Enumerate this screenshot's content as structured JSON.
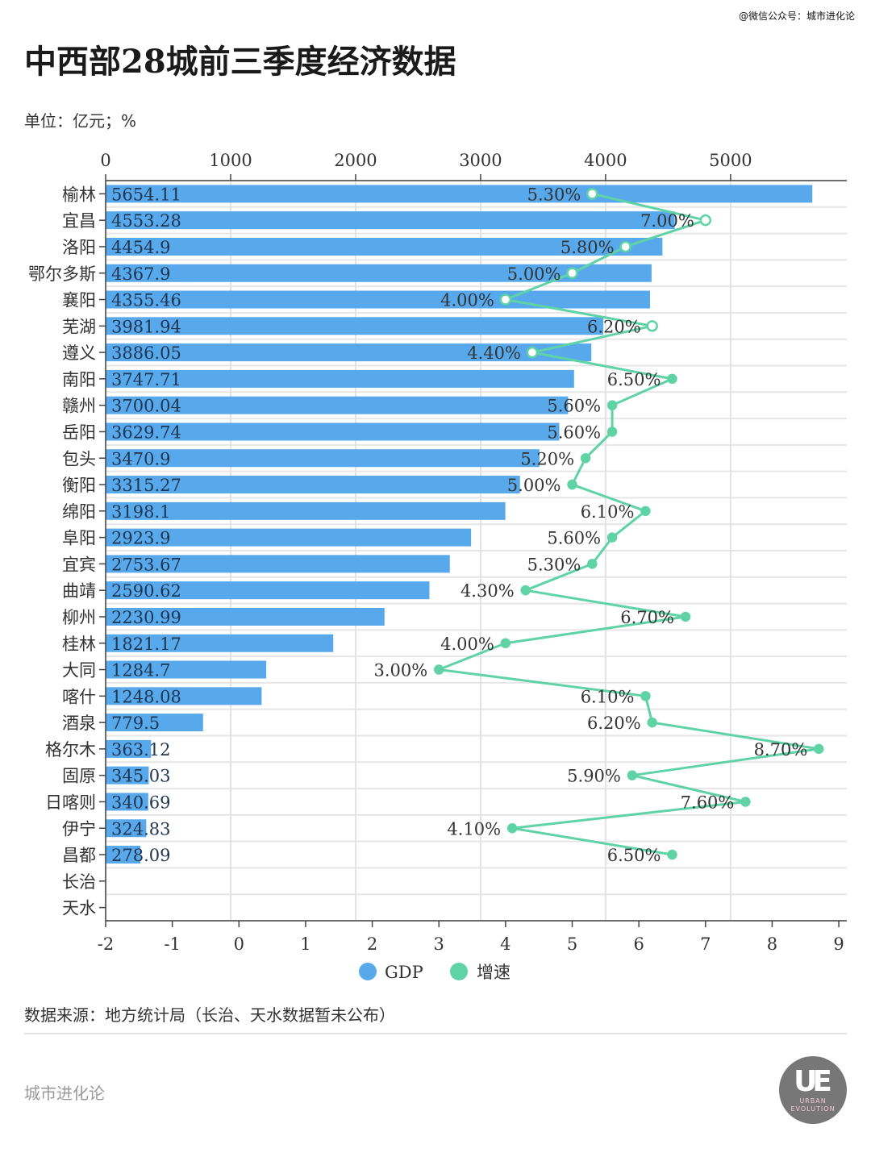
{
  "credit": "@微信公众号：城市进化论",
  "title": "中西部28城前三季度经济数据",
  "unit": "单位：亿元；%",
  "source": "数据来源：地方统计局（长治、天水数据暂未公布）",
  "footer": "城市进化论",
  "logo": {
    "letters": "UE",
    "text": "URBAN EVOLUTION"
  },
  "colors": {
    "gdp": "#57a9ec",
    "growth": "#5fd3a6"
  },
  "chart_data": {
    "type": "bar+line",
    "categories": [
      "榆林",
      "宜昌",
      "洛阳",
      "鄂尔多斯",
      "襄阳",
      "芜湖",
      "遵义",
      "南阳",
      "赣州",
      "岳阳",
      "包头",
      "衡阳",
      "绵阳",
      "阜阳",
      "宜宾",
      "曲靖",
      "柳州",
      "桂林",
      "大同",
      "喀什",
      "酒泉",
      "格尔木",
      "固原",
      "日喀则",
      "伊宁",
      "昌都",
      "长治",
      "天水"
    ],
    "series": [
      {
        "name": "GDP",
        "type": "bar",
        "axis": "top",
        "values": [
          5654.11,
          4553.28,
          4454.9,
          4367.9,
          4355.46,
          3981.94,
          3886.05,
          3747.71,
          3700.04,
          3629.74,
          3470.9,
          3315.27,
          3198.1,
          2923.9,
          2753.67,
          2590.62,
          2230.99,
          1821.17,
          1284.7,
          1248.08,
          779.5,
          363.12,
          345.03,
          340.69,
          324.83,
          278.09,
          null,
          null
        ],
        "labels": [
          "5654.11",
          "4553.28",
          "4454.9",
          "4367.9",
          "4355.46",
          "3981.94",
          "3886.05",
          "3747.71",
          "3700.04",
          "3629.74",
          "3470.9",
          "3315.27",
          "3198.1",
          "2923.9",
          "2753.67",
          "2590.62",
          "2230.99",
          "1821.17",
          "1284.7",
          "1248.08",
          "779.5",
          "363.12",
          "345.03",
          "340.69",
          "324.83",
          "278.09",
          null,
          null
        ]
      },
      {
        "name": "增速",
        "type": "line",
        "axis": "bottom",
        "values": [
          5.3,
          7.0,
          5.8,
          5.0,
          4.0,
          6.2,
          4.4,
          6.5,
          5.6,
          5.6,
          5.2,
          5.0,
          6.1,
          5.6,
          5.3,
          4.3,
          6.7,
          4.0,
          3.0,
          6.1,
          6.2,
          8.7,
          5.9,
          7.6,
          4.1,
          6.5,
          null,
          null
        ],
        "labels": [
          "5.30%",
          "7.00%",
          "5.80%",
          "5.00%",
          "4.00%",
          "6.20%",
          "4.40%",
          "6.50%",
          "5.60%",
          "5.60%",
          "5.20%",
          "5.00%",
          "6.10%",
          "5.60%",
          "5.30%",
          "4.30%",
          "6.70%",
          "4.00%",
          "3.00%",
          "6.10%",
          "6.20%",
          "8.70%",
          "5.90%",
          "7.60%",
          "4.10%",
          "6.50%",
          null,
          null
        ]
      }
    ],
    "top_axis": {
      "ticks": [
        "0",
        "1000",
        "2000",
        "3000",
        "4000",
        "5000"
      ],
      "range": [
        0,
        5930
      ]
    },
    "bottom_axis": {
      "ticks": [
        "-2",
        "-1",
        "0",
        "1",
        "2",
        "3",
        "4",
        "5",
        "6",
        "7",
        "8",
        "9"
      ],
      "range": [
        -2,
        9.12
      ]
    },
    "legend": {
      "position": "bottom",
      "items": [
        "GDP",
        "增速"
      ]
    },
    "grid": true
  }
}
